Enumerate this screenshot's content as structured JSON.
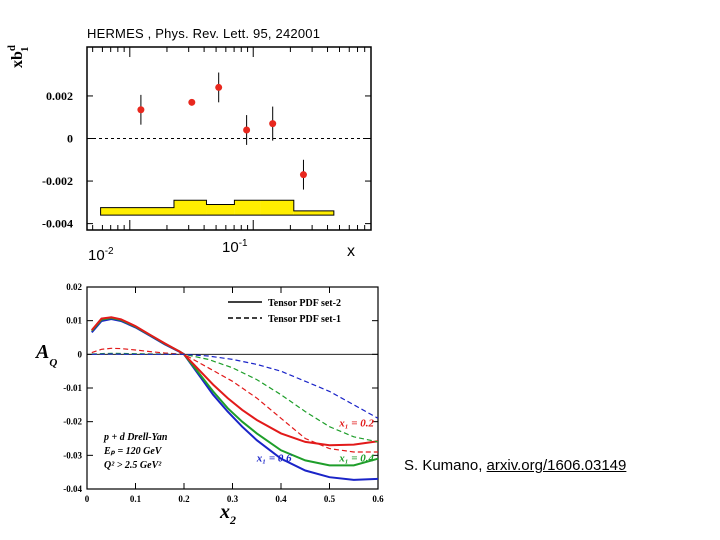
{
  "chart_data": [
    {
      "type": "scatter",
      "title": "HERMES , Phys. Rev. Lett. 95, 242001",
      "ylabel_base": "xb",
      "ylabel_sup": "d",
      "ylabel_sub": "1",
      "xlabel": "x",
      "x_scale": "log",
      "xlim": [
        0.0045,
        0.9
      ],
      "ylim": [
        -0.0043,
        0.0043
      ],
      "ytick_values": [
        0.002,
        0,
        -0.002,
        -0.004
      ],
      "ytick_labels": [
        "0.002",
        "0",
        "-0.002",
        "-0.004"
      ],
      "xtick_labels": [
        {
          "base": "10",
          "exp": "-2"
        },
        {
          "base": "10",
          "exp": "-1"
        }
      ],
      "points": [
        {
          "x": 0.0123,
          "y": 0.00135,
          "err": 0.0007
        },
        {
          "x": 0.0318,
          "y": 0.0017,
          "err": 0.0001
        },
        {
          "x": 0.0525,
          "y": 0.0024,
          "err": 0.0007
        },
        {
          "x": 0.0884,
          "y": 0.0004,
          "err": 0.0007
        },
        {
          "x": 0.1438,
          "y": 0.0007,
          "err": 0.0008
        },
        {
          "x": 0.2553,
          "y": -0.0017,
          "err": 0.0007
        }
      ],
      "systematic_band": [
        {
          "x0": 0.0058,
          "x1": 0.0228,
          "top": -0.00325
        },
        {
          "x0": 0.0228,
          "x1": 0.0418,
          "top": -0.0029
        },
        {
          "x0": 0.0418,
          "x1": 0.0704,
          "top": -0.0031
        },
        {
          "x0": 0.0704,
          "x1": 0.1155,
          "top": -0.0029
        },
        {
          "x0": 0.1155,
          "x1": 0.2132,
          "top": -0.0029
        },
        {
          "x0": 0.2132,
          "x1": 0.45,
          "top": -0.0034
        }
      ],
      "band_bottom": -0.0036,
      "colors": {
        "points": "#e8281e",
        "band": "#ffee00"
      }
    },
    {
      "type": "line",
      "ylabel_base": "A",
      "ylabel_sub": "Q",
      "xlabel_base": "x",
      "xlabel_sub": "2",
      "xlim": [
        0,
        0.6
      ],
      "ylim": [
        -0.04,
        0.02
      ],
      "xticks": [
        0,
        0.1,
        0.2,
        0.3,
        0.4,
        0.5,
        0.6
      ],
      "xtick_labels": [
        "0",
        "0.1",
        "0.2",
        "0.3",
        "0.4",
        "0.5",
        "0.6"
      ],
      "yticks": [
        0.02,
        0.01,
        0,
        -0.01,
        -0.02,
        -0.03,
        -0.04
      ],
      "ytick_labels": [
        "0.02",
        "0.01",
        "0",
        "-0.01",
        "-0.02",
        "-0.03",
        "-0.04"
      ],
      "legend": [
        {
          "label": "Tensor PDF set-2",
          "style": "solid"
        },
        {
          "label": "Tensor PDF set-1",
          "style": "dashed"
        }
      ],
      "process_lines": [
        "p + d  Drell-Yan",
        "Eₚ = 120 GeV",
        "Q² > 2.5 GeV²"
      ],
      "series": [
        {
          "name": "x1=0.6 set-2",
          "color": "#1a24c8",
          "dash": false,
          "x": [
            0.01,
            0.03,
            0.05,
            0.07,
            0.1,
            0.13,
            0.16,
            0.19,
            0.2,
            0.23,
            0.26,
            0.29,
            0.32,
            0.35,
            0.4,
            0.45,
            0.5,
            0.55,
            0.6
          ],
          "y": [
            0.0065,
            0.0099,
            0.0105,
            0.0099,
            0.008,
            0.0055,
            0.003,
            0.0008,
            0,
            -0.006,
            -0.012,
            -0.017,
            -0.0215,
            -0.0255,
            -0.031,
            -0.0345,
            -0.0365,
            -0.0373,
            -0.037
          ]
        },
        {
          "name": "x1=0.4 set-2",
          "color": "#1e9e2a",
          "dash": false,
          "x": [
            0.01,
            0.03,
            0.05,
            0.07,
            0.1,
            0.13,
            0.16,
            0.19,
            0.2,
            0.23,
            0.26,
            0.29,
            0.32,
            0.35,
            0.4,
            0.45,
            0.5,
            0.55,
            0.6
          ],
          "y": [
            0.007,
            0.0103,
            0.0108,
            0.0102,
            0.0082,
            0.0057,
            0.0032,
            0.0009,
            0,
            -0.0055,
            -0.011,
            -0.016,
            -0.02,
            -0.0235,
            -0.0285,
            -0.0315,
            -0.033,
            -0.033,
            -0.031
          ]
        },
        {
          "name": "x1=0.2 set-2",
          "color": "#e21a1a",
          "dash": false,
          "x": [
            0.01,
            0.03,
            0.05,
            0.07,
            0.1,
            0.13,
            0.16,
            0.19,
            0.2,
            0.23,
            0.26,
            0.29,
            0.32,
            0.35,
            0.4,
            0.45,
            0.5,
            0.55,
            0.6
          ],
          "y": [
            0.0072,
            0.0106,
            0.011,
            0.0104,
            0.0084,
            0.0058,
            0.0033,
            0.0009,
            0,
            -0.0045,
            -0.009,
            -0.013,
            -0.0165,
            -0.0195,
            -0.0235,
            -0.026,
            -0.027,
            -0.0268,
            -0.0258
          ]
        },
        {
          "name": "x1=0.2 set-1",
          "color": "#e21a1a",
          "dash": true,
          "x": [
            0.01,
            0.03,
            0.05,
            0.07,
            0.1,
            0.13,
            0.16,
            0.19,
            0.2,
            0.25,
            0.3,
            0.35,
            0.4,
            0.45,
            0.5,
            0.55,
            0.6
          ],
          "y": [
            0.0005,
            0.0015,
            0.0018,
            0.0017,
            0.0013,
            0.0008,
            0.0004,
            0.0001,
            0,
            -0.004,
            -0.008,
            -0.013,
            -0.019,
            -0.025,
            -0.028,
            -0.029,
            -0.029
          ]
        },
        {
          "name": "x1=0.4 set-1",
          "color": "#1e9e2a",
          "dash": true,
          "x": [
            0.01,
            0.05,
            0.1,
            0.15,
            0.2,
            0.25,
            0.3,
            0.35,
            0.4,
            0.45,
            0.5,
            0.55,
            0.6
          ],
          "y": [
            0.0001,
            0.0003,
            0.0002,
            0.0001,
            0,
            -0.0015,
            -0.004,
            -0.0075,
            -0.012,
            -0.017,
            -0.0215,
            -0.0245,
            -0.026
          ]
        },
        {
          "name": "x1=0.6 set-1",
          "color": "#1a24c8",
          "dash": true,
          "x": [
            0.01,
            0.05,
            0.1,
            0.15,
            0.2,
            0.25,
            0.3,
            0.35,
            0.4,
            0.45,
            0.5,
            0.55,
            0.6
          ],
          "y": [
            0,
            0.0001,
            0,
            0,
            0,
            -0.0005,
            -0.0015,
            -0.003,
            -0.005,
            -0.008,
            -0.011,
            -0.015,
            -0.019
          ]
        }
      ],
      "annotations": [
        {
          "label": "x₁ = 0.2",
          "color": "#e21a1a",
          "x": 0.52,
          "y": -0.0215
        },
        {
          "label": "x₁ = 0.4",
          "color": "#1e9e2a",
          "x": 0.52,
          "y": -0.0318
        },
        {
          "label": "x₁ = 0.6",
          "color": "#1a24c8",
          "x": 0.35,
          "y": -0.0318
        }
      ]
    }
  ],
  "attribution": {
    "author": "S. Kumano, ",
    "link": "arxiv.org/1606.03149"
  }
}
